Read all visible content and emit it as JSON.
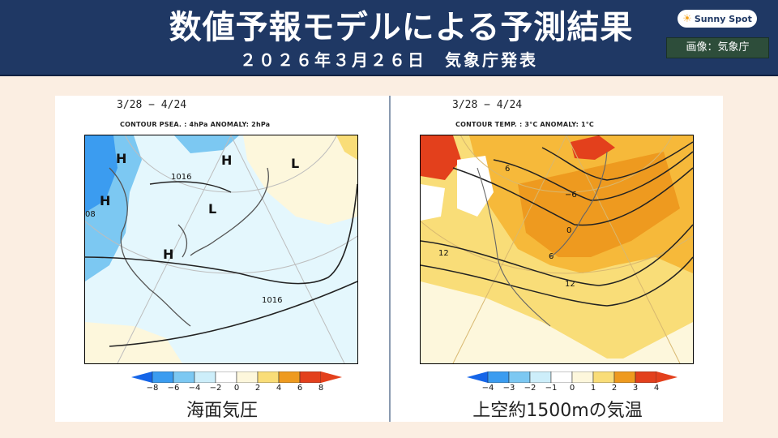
{
  "header": {
    "title": "数値予報モデルによる予測結果",
    "subtitle": "２０２６年３月２６日　気象庁発表",
    "logo_text": "Sunny Spot",
    "credit": "画像：気象庁"
  },
  "colors": {
    "header_bg": "#1f3864",
    "page_bg": "#fbeee2",
    "credit_bg": "#2d4d3a",
    "blue_deep": "#1565e8",
    "blue_mid": "#3b9cf0",
    "blue_light": "#7cc8f2",
    "cyan_pale": "#cdeefa",
    "white": "#ffffff",
    "cream": "#fdf7dc",
    "yellow": "#f9dd78",
    "orange_light": "#f6b93a",
    "orange": "#ee9a1f",
    "red": "#e3401c"
  },
  "maps": [
    {
      "date_range": "3/28 − 4/24",
      "contour_label": "CONTOUR PSEA. :  4hPa     ANOMALY:  2hPa",
      "caption": "海面気圧",
      "colorbar_ticks": [
        "−8",
        "−6",
        "−4",
        "−2",
        "0",
        "2",
        "4",
        "6",
        "8"
      ],
      "pressure_labels": {
        "H": "H",
        "L": "L",
        "isobar_a": "1016",
        "isobar_b": "1016",
        "isobar_c": "08"
      }
    },
    {
      "date_range": "3/28 − 4/24",
      "contour_label": "CONTOUR TEMP. :  3°C     ANOMALY:  1°C",
      "caption": "上空約1500mの気温",
      "colorbar_ticks": [
        "−4",
        "−3",
        "−2",
        "−1",
        "0",
        "1",
        "2",
        "3",
        "4"
      ],
      "isotherm_labels": {
        "a": "12",
        "b": "12",
        "c": "6",
        "d": "0",
        "e": "−6",
        "f": "6"
      }
    }
  ]
}
